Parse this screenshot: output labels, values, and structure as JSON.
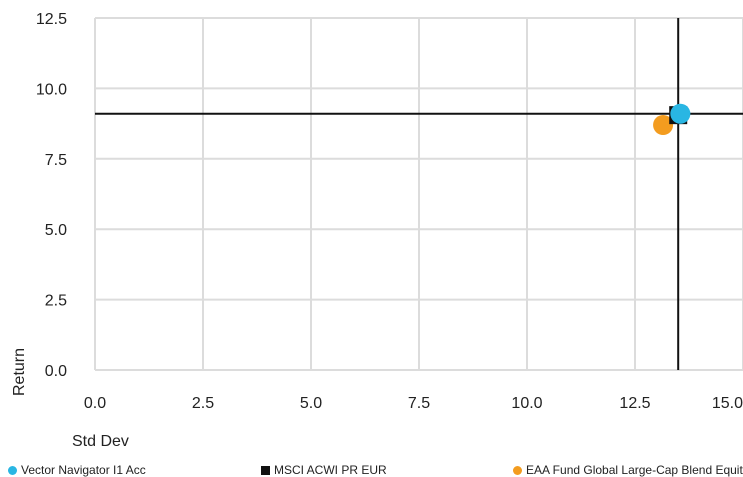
{
  "chart_data": {
    "type": "scatter",
    "xlabel": "Std Dev",
    "ylabel": "Return",
    "xlim": [
      0,
      15
    ],
    "ylim": [
      0,
      12.5
    ],
    "x_ticks": [
      "0.0",
      "2.5",
      "5.0",
      "7.5",
      "10.0",
      "12.5",
      "15.0"
    ],
    "y_ticks": [
      "0.0",
      "2.5",
      "5.0",
      "7.5",
      "10.0",
      "12.5"
    ],
    "grid": true,
    "crosshair": {
      "x": 13.5,
      "y": 9.1
    },
    "series": [
      {
        "name": "Vector Navigator I1 Acc",
        "marker": "circle",
        "color": "#29b6e3",
        "x": 13.55,
        "y": 9.1
      },
      {
        "name": "MSCI ACWI PR EUR",
        "marker": "square",
        "color": "#111111",
        "x": 13.5,
        "y": 9.05
      },
      {
        "name": "EAA Fund Global Large-Cap Blend Equity",
        "marker": "circle",
        "color": "#f39c1f",
        "x": 13.15,
        "y": 8.7
      }
    ],
    "legend_position": "bottom"
  }
}
